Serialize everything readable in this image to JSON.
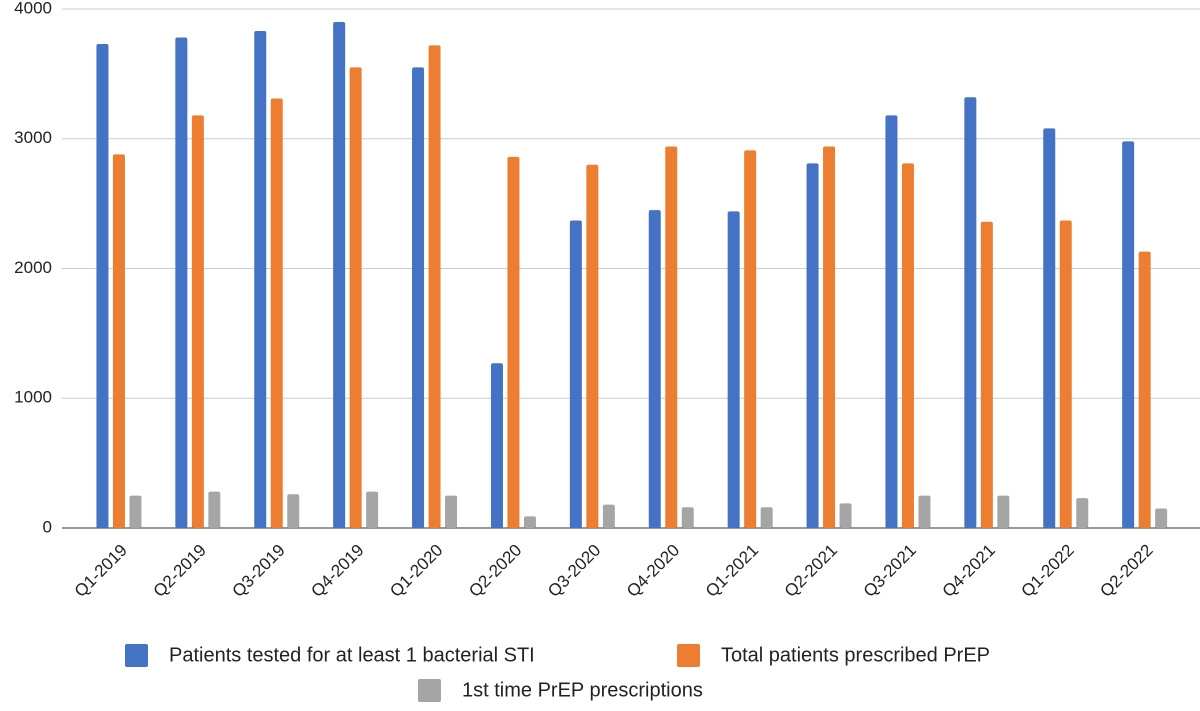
{
  "chart_data": {
    "type": "bar",
    "categories": [
      "Q1-2019",
      "Q2-2019",
      "Q3-2019",
      "Q4-2019",
      "Q1-2020",
      "Q2-2020",
      "Q3-2020",
      "Q4-2020",
      "Q1-2021",
      "Q2-2021",
      "Q3-2021",
      "Q4-2021",
      "Q1-2022",
      "Q2-2022"
    ],
    "series": [
      {
        "name": "Patients tested for at least 1 bacterial STI",
        "color": "#4472c4",
        "values": [
          3730,
          3780,
          3830,
          3900,
          3550,
          1270,
          2370,
          2450,
          2440,
          2810,
          3180,
          3320,
          3080,
          2980
        ]
      },
      {
        "name": "Total patients prescribed PrEP",
        "color": "#ed7d31",
        "values": [
          2880,
          3180,
          3310,
          3550,
          3720,
          2860,
          2800,
          2940,
          2910,
          2940,
          2810,
          2360,
          2370,
          2130
        ]
      },
      {
        "name": "1st time PrEP prescriptions",
        "color": "#a5a5a5",
        "values": [
          250,
          280,
          260,
          280,
          250,
          90,
          180,
          160,
          160,
          190,
          250,
          250,
          230,
          150
        ]
      }
    ],
    "ylim": [
      0,
      4000
    ],
    "yticks": [
      0,
      1000,
      2000,
      3000,
      4000
    ],
    "grid": true
  }
}
